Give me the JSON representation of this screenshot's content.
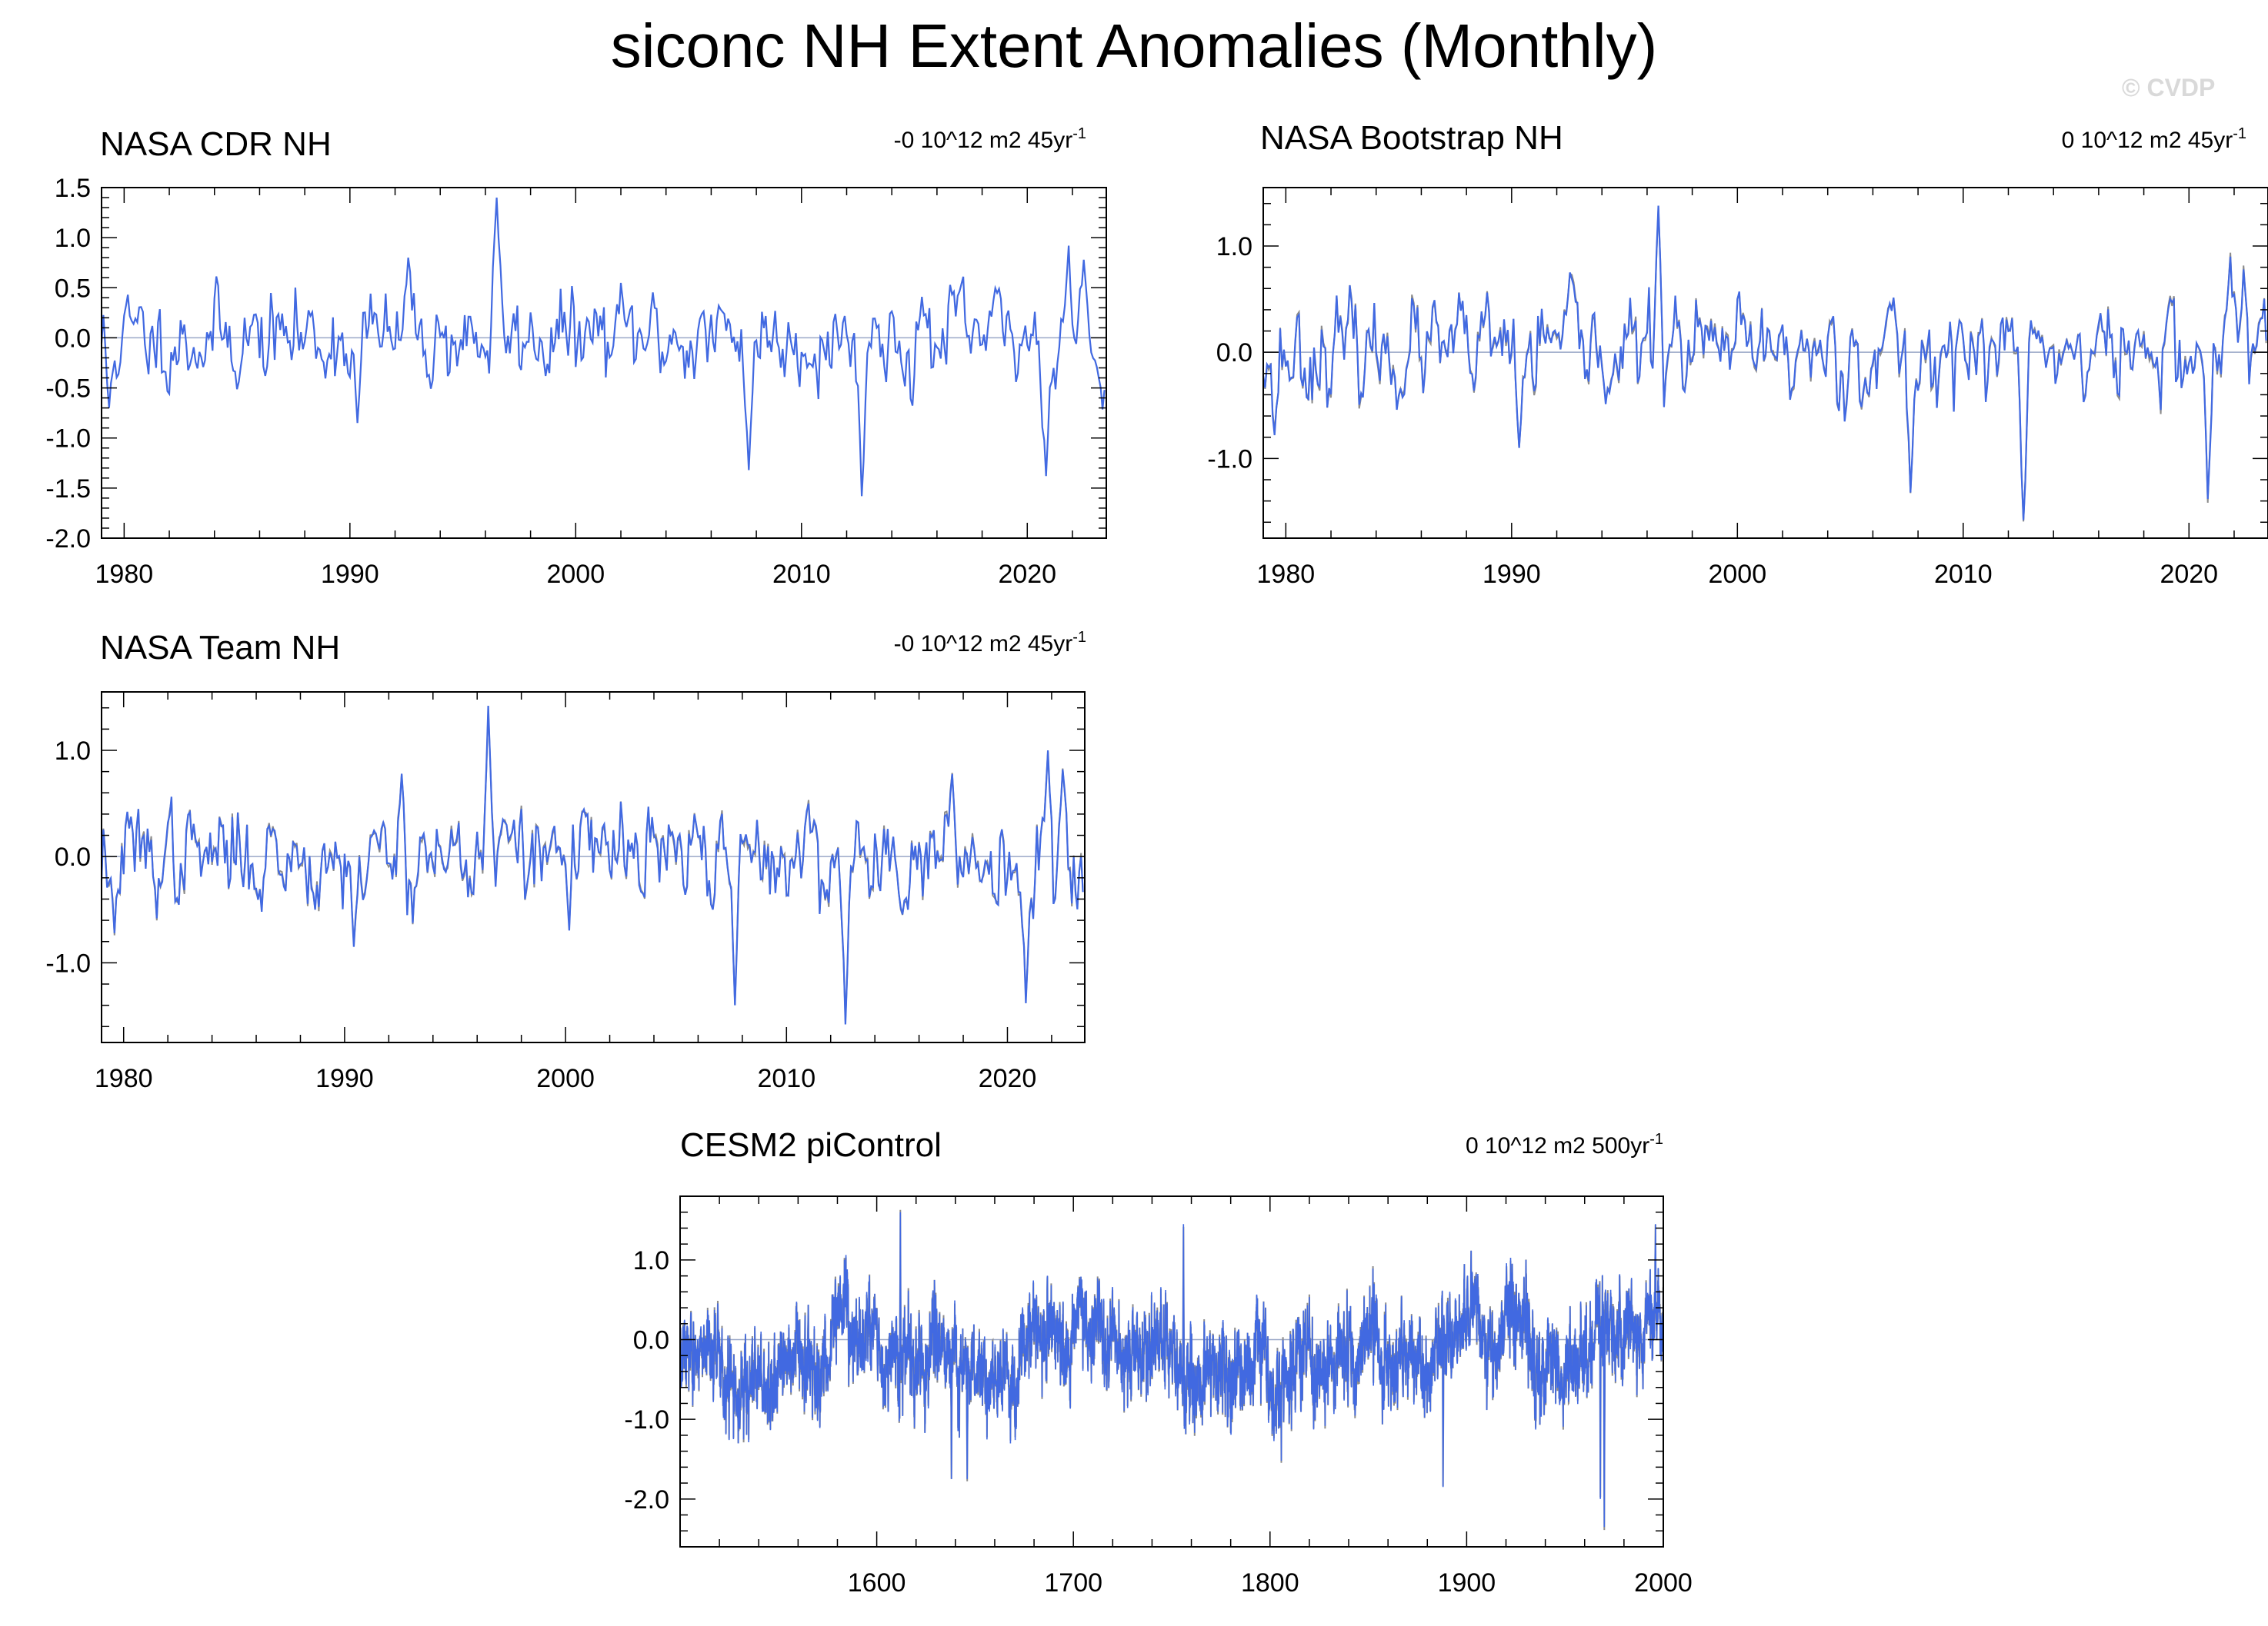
{
  "title": "siconc NH Extent Anomalies (Monthly)",
  "watermark": "© CVDP",
  "colors": {
    "series": "#4169E1",
    "secondary": "#8c8c8c",
    "axis": "#000000",
    "zero": "#9aa7c7"
  },
  "chart_data": [
    {
      "type": "line",
      "title": "NASA CDR NH",
      "trend_text": "-0 10^12 m2 45yr",
      "trend_exp": "-1",
      "x_range": [
        1979,
        2023.5
      ],
      "ylim": [
        -2.0,
        1.5
      ],
      "yticks": [
        1.5,
        1.0,
        0.5,
        0.0,
        -0.5,
        -1.0,
        -1.5,
        -2.0
      ],
      "ytick_labels": [
        "1.5",
        "1.0",
        "0.5",
        "0.0",
        "-0.5",
        "-1.0",
        "-1.5",
        "-2.0"
      ],
      "xticks": [
        1980,
        1990,
        2000,
        2010,
        2020
      ],
      "xtick_labels": [
        "1980",
        "1990",
        "2000",
        "2010",
        "2020"
      ],
      "start_year": 1979,
      "n": 534,
      "seed": 11,
      "secondary": false,
      "features": [
        {
          "year": 1979.3,
          "value": -0.7
        },
        {
          "year": 1990.3,
          "value": -0.85
        },
        {
          "year": 1992.6,
          "value": 0.8
        },
        {
          "year": 1996.5,
          "value": 1.4
        },
        {
          "year": 2007.7,
          "value": -1.32
        },
        {
          "year": 2012.7,
          "value": -1.58
        },
        {
          "year": 2020.8,
          "value": -1.38
        },
        {
          "year": 2021.8,
          "value": 0.92
        },
        {
          "year": 2022.5,
          "value": 0.78
        }
      ]
    },
    {
      "type": "line",
      "title": "NASA Bootstrap NH",
      "trend_text": "0 10^12 m2 45yr",
      "trend_exp": "-1",
      "x_range": [
        1979,
        2023.5
      ],
      "ylim": [
        -1.75,
        1.55
      ],
      "yticks": [
        1.0,
        0.0,
        -1.0
      ],
      "ytick_labels": [
        "1.0",
        "0.0",
        "-1.0"
      ],
      "xticks": [
        1980,
        1990,
        2000,
        2010,
        2020
      ],
      "xtick_labels": [
        "1980",
        "1990",
        "2000",
        "2010",
        "2020"
      ],
      "start_year": 1979,
      "n": 534,
      "seed": 23,
      "secondary": true,
      "features": [
        {
          "year": 1979.5,
          "value": -0.78
        },
        {
          "year": 1990.3,
          "value": -0.9
        },
        {
          "year": 1992.6,
          "value": 0.75
        },
        {
          "year": 1996.5,
          "value": 1.38
        },
        {
          "year": 2007.7,
          "value": -1.32
        },
        {
          "year": 2012.7,
          "value": -1.58
        },
        {
          "year": 2020.8,
          "value": -1.38
        },
        {
          "year": 2021.8,
          "value": 0.9
        },
        {
          "year": 2022.4,
          "value": 0.78
        }
      ]
    },
    {
      "type": "line",
      "title": "NASA Team NH",
      "trend_text": "-0 10^12 m2 45yr",
      "trend_exp": "-1",
      "x_range": [
        1979,
        2023.5
      ],
      "ylim": [
        -1.75,
        1.55
      ],
      "yticks": [
        1.0,
        0.0,
        -1.0
      ],
      "ytick_labels": [
        "1.0",
        "0.0",
        "-1.0"
      ],
      "xticks": [
        1980,
        1990,
        2000,
        2010,
        2020
      ],
      "xtick_labels": [
        "1980",
        "1990",
        "2000",
        "2010",
        "2020"
      ],
      "start_year": 1979,
      "n": 534,
      "seed": 37,
      "secondary": true,
      "features": [
        {
          "year": 1979.6,
          "value": -0.72
        },
        {
          "year": 1990.4,
          "value": -0.85
        },
        {
          "year": 1992.6,
          "value": 0.78
        },
        {
          "year": 1996.5,
          "value": 1.42
        },
        {
          "year": 2007.7,
          "value": -1.4
        },
        {
          "year": 2012.7,
          "value": -1.58
        },
        {
          "year": 2020.8,
          "value": -1.38
        },
        {
          "year": 2021.8,
          "value": 1.0
        },
        {
          "year": 2022.5,
          "value": 0.82
        }
      ]
    },
    {
      "type": "line",
      "title": "CESM2 piControl",
      "trend_text": "0 10^12 m2 500yr",
      "trend_exp": "-1",
      "x_range": [
        1500,
        2000
      ],
      "ylim": [
        -2.6,
        1.8
      ],
      "yticks": [
        1.0,
        0.0,
        -1.0,
        -2.0
      ],
      "ytick_labels": [
        "1.0",
        "0.0",
        "-1.0",
        "-2.0"
      ],
      "xticks": [
        1600,
        1700,
        1800,
        1900,
        2000
      ],
      "xtick_labels": [
        "1600",
        "1700",
        "1800",
        "1900",
        "2000"
      ],
      "start_year": 1500,
      "n": 6000,
      "seed": 53,
      "secondary": true,
      "features": [
        {
          "year": 1612,
          "value": 1.6
        },
        {
          "year": 1638,
          "value": -1.75
        },
        {
          "year": 1646,
          "value": -1.75
        },
        {
          "year": 1756,
          "value": 1.45
        },
        {
          "year": 1888,
          "value": -1.85
        },
        {
          "year": 1968,
          "value": -2.0
        },
        {
          "year": 1970,
          "value": -2.35
        },
        {
          "year": 1996,
          "value": 1.45
        }
      ]
    }
  ]
}
